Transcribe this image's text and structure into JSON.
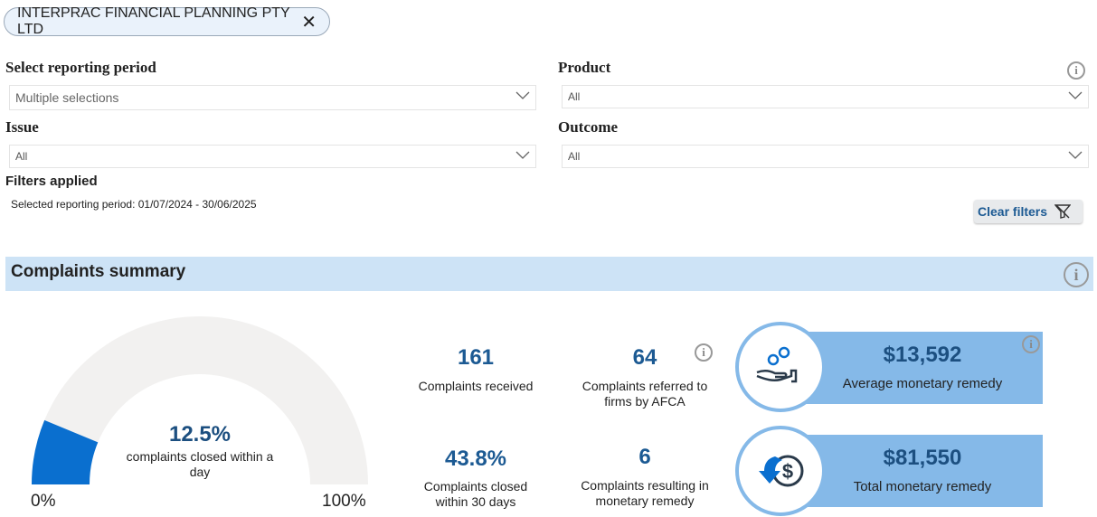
{
  "chip": {
    "label": "INTERPRAC FINANCIAL PLANNING PTY LTD",
    "close": "✕"
  },
  "filters": {
    "period": {
      "label": "Select reporting period",
      "value": "Multiple selections"
    },
    "product": {
      "label": "Product",
      "value": "All"
    },
    "issue": {
      "label": "Issue",
      "value": "All"
    },
    "outcome": {
      "label": "Outcome",
      "value": "All"
    },
    "applied_title": "Filters applied",
    "applied_text": "Selected reporting period: 01/07/2024 - 30/06/2025",
    "clear": "Clear filters"
  },
  "summary": {
    "title": "Complaints summary",
    "gauge": {
      "value": "12.5%",
      "percent": 12.5,
      "caption": "complaints closed within a day",
      "min": "0%",
      "max": "100%",
      "fill": "#0a6fcf",
      "track": "#f2f1f0"
    },
    "received": {
      "value": "161",
      "caption": "Complaints received"
    },
    "referred": {
      "value": "64",
      "caption": "Complaints referred to firms by AFCA"
    },
    "closed30": {
      "value": "43.8%",
      "caption": "Complaints closed within 30 days"
    },
    "monetary_count": {
      "value": "6",
      "caption": "Complaints resulting in monetary remedy"
    },
    "avg": {
      "value": "$13,592",
      "caption": "Average monetary remedy",
      "icon": "hand-coins-icon"
    },
    "total": {
      "value": "$81,550",
      "caption": "Total monetary remedy",
      "icon": "dollar-refund-icon"
    }
  }
}
